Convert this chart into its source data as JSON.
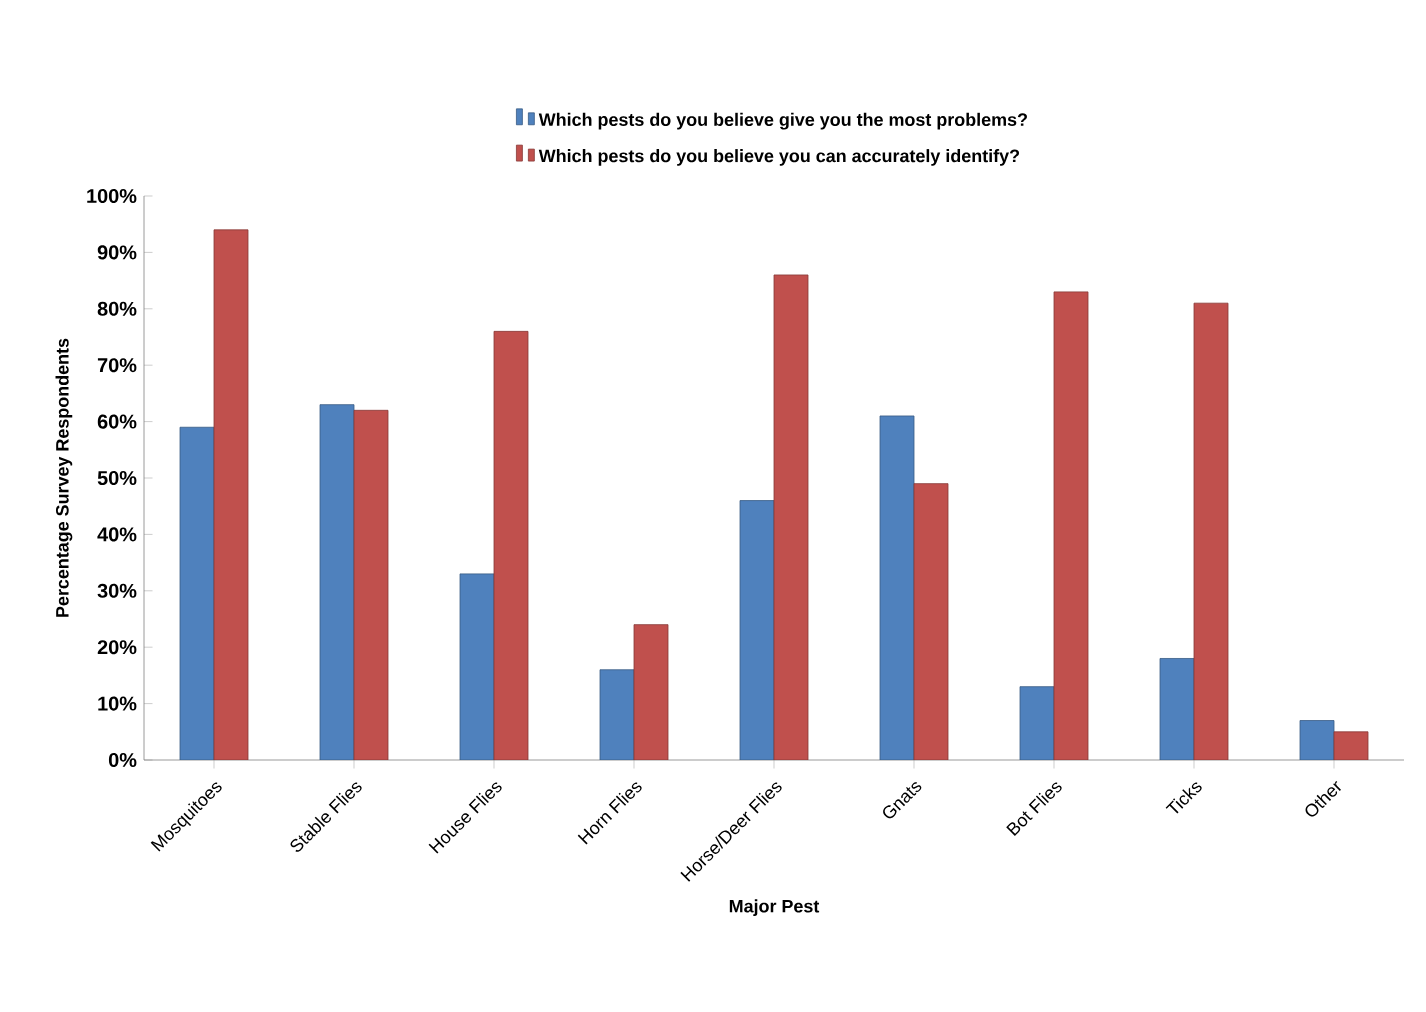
{
  "chart_data": {
    "type": "bar",
    "xlabel": "Major Pest",
    "ylabel": "Percentage Survey Respondents",
    "categories": [
      "Mosquitoes",
      "Stable Flies",
      "House Flies",
      "Horn Flies",
      "Horse/Deer Flies",
      "Gnats",
      "Bot Flies",
      "Ticks",
      "Other"
    ],
    "series": [
      {
        "name": "Which pests do you believe give you the most problems?",
        "color": "#4f81bd",
        "values": [
          59,
          63,
          33,
          16,
          46,
          61,
          13,
          18,
          7
        ]
      },
      {
        "name": "Which pests do you believe you can accurately identify?",
        "color": "#c0504d",
        "values": [
          94,
          62,
          76,
          24,
          86,
          49,
          83,
          81,
          5
        ]
      }
    ],
    "ylim": [
      0,
      100
    ],
    "yticks": [
      {
        "value": 0,
        "label": "0%"
      },
      {
        "value": 10,
        "label": "10%"
      },
      {
        "value": 20,
        "label": "20%"
      },
      {
        "value": 30,
        "label": "30%"
      },
      {
        "value": 40,
        "label": "40%"
      },
      {
        "value": 50,
        "label": "50%"
      },
      {
        "value": 60,
        "label": "60%"
      },
      {
        "value": 70,
        "label": "70%"
      },
      {
        "value": 80,
        "label": "80%"
      },
      {
        "value": 90,
        "label": "90%"
      },
      {
        "value": 100,
        "label": "100%"
      }
    ],
    "grid": false,
    "legend": "top"
  }
}
